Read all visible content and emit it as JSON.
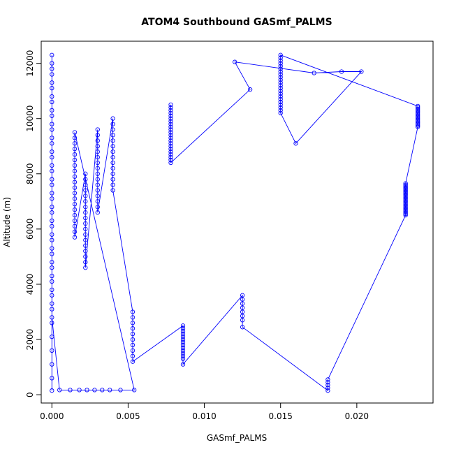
{
  "chart_data": {
    "type": "scatter",
    "title": "ATOM4 Southbound GASmf_PALMS",
    "xlabel": "GASmf_PALMS",
    "ylabel": "Altitude (m)",
    "xlim": [
      -0.0007,
      0.025
    ],
    "ylim": [
      -300,
      12800
    ],
    "x_ticks": [
      0.0,
      0.005,
      0.01,
      0.015,
      0.02
    ],
    "x_tick_labels": [
      "0.000",
      "0.005",
      "0.010",
      "0.015",
      "0.020"
    ],
    "y_ticks": [
      0,
      2000,
      4000,
      6000,
      8000,
      10000,
      12000
    ],
    "y_tick_labels": [
      "0",
      "2000",
      "4000",
      "6000",
      "8000",
      "10000",
      "12000"
    ],
    "grid": false,
    "legend": "none",
    "series_color": "#0000ff",
    "marker": "open-circle",
    "connected": true,
    "series": [
      {
        "x": [
          0.0,
          0.0,
          0.0,
          0.0,
          0.0,
          0.0,
          0.0,
          0.0,
          0.0,
          0.0,
          0.0,
          0.0,
          0.0,
          0.0,
          0.0,
          0.0,
          0.0,
          0.0,
          0.0,
          0.0,
          0.0,
          0.0,
          0.0,
          0.0,
          0.0,
          0.0,
          0.0,
          0.0,
          0.0,
          0.0,
          0.0,
          0.0,
          0.0,
          0.0,
          0.0,
          0.0,
          0.0,
          0.0,
          0.0,
          0.0,
          0.0,
          0.0,
          0.0,
          0.0,
          0.0,
          0.0005,
          0.0012,
          0.0018,
          0.0023,
          0.0028,
          0.0033,
          0.0038,
          0.0045,
          0.0054,
          0.0015,
          0.0015,
          0.0015,
          0.0015,
          0.0015,
          0.0015,
          0.0015,
          0.0015,
          0.0015,
          0.0015,
          0.0015,
          0.0015,
          0.0015,
          0.0015,
          0.0015,
          0.0015,
          0.0015,
          0.0015,
          0.0015,
          0.0015,
          0.0022,
          0.0022,
          0.0022,
          0.0022,
          0.0022,
          0.0022,
          0.0022,
          0.0022,
          0.0022,
          0.0022,
          0.0022,
          0.0022,
          0.0022,
          0.0022,
          0.0022,
          0.0022,
          0.0022,
          0.0022,
          0.003,
          0.003,
          0.003,
          0.003,
          0.003,
          0.003,
          0.003,
          0.003,
          0.003,
          0.003,
          0.003,
          0.003,
          0.003,
          0.003,
          0.003,
          0.003,
          0.004,
          0.004,
          0.004,
          0.004,
          0.004,
          0.004,
          0.004,
          0.004,
          0.004,
          0.004,
          0.004,
          0.004,
          0.004,
          0.004,
          0.0053,
          0.0053,
          0.0053,
          0.0053,
          0.0053,
          0.0053,
          0.0053,
          0.0053,
          0.0053,
          0.0053,
          0.0086,
          0.0086,
          0.0086,
          0.0086,
          0.0086,
          0.0086,
          0.0086,
          0.0086,
          0.0086,
          0.0086,
          0.0086,
          0.0086,
          0.0086,
          0.0086,
          0.0125,
          0.0125,
          0.0125,
          0.0125,
          0.0125,
          0.0125,
          0.0125,
          0.0125,
          0.0181,
          0.0181,
          0.0181,
          0.0181,
          0.0181,
          0.0232,
          0.0232,
          0.0232,
          0.0232,
          0.0232,
          0.0232,
          0.0232,
          0.0232,
          0.0232,
          0.0232,
          0.0232,
          0.0232,
          0.0232,
          0.0232,
          0.0232,
          0.0232,
          0.0232,
          0.0232,
          0.0232,
          0.0232,
          0.0232,
          0.0232,
          0.0232,
          0.0232,
          0.024,
          0.024,
          0.024,
          0.024,
          0.024,
          0.024,
          0.024,
          0.024,
          0.024,
          0.024,
          0.024,
          0.024,
          0.024,
          0.024,
          0.024,
          0.024,
          0.015,
          0.015,
          0.015,
          0.015,
          0.015,
          0.015,
          0.015,
          0.015,
          0.015,
          0.015,
          0.015,
          0.015,
          0.015,
          0.015,
          0.015,
          0.015,
          0.015,
          0.015,
          0.015,
          0.015,
          0.015,
          0.015,
          0.016,
          0.0203,
          0.019,
          0.0172,
          0.012,
          0.013,
          0.0078,
          0.0078,
          0.0078,
          0.0078,
          0.0078,
          0.0078,
          0.0078,
          0.0078,
          0.0078,
          0.0078,
          0.0078,
          0.0078,
          0.0078,
          0.0078,
          0.0078,
          0.0078,
          0.0078,
          0.0078,
          0.0078,
          0.0078,
          0.0078,
          0.0078
        ],
        "y": [
          150,
          600,
          1100,
          1600,
          2100,
          2600,
          3100,
          3600,
          4100,
          4600,
          5100,
          5600,
          6100,
          6600,
          7100,
          7600,
          8100,
          8600,
          9100,
          9600,
          10100,
          10600,
          11100,
          11600,
          12000,
          12300,
          11800,
          11300,
          10800,
          10300,
          9800,
          9300,
          8800,
          8300,
          7800,
          7300,
          6800,
          6300,
          5800,
          5300,
          4800,
          4300,
          3800,
          3300,
          2800,
          170,
          170,
          170,
          170,
          170,
          170,
          170,
          170,
          170,
          9500,
          9300,
          9100,
          8900,
          8700,
          8500,
          8300,
          8100,
          7900,
          7700,
          7500,
          7300,
          7100,
          6900,
          6700,
          6500,
          6300,
          6100,
          5900,
          5700,
          8000,
          7800,
          7600,
          7400,
          7200,
          7000,
          6800,
          6600,
          6400,
          6200,
          6000,
          5800,
          5600,
          5400,
          5200,
          5000,
          4800,
          4600,
          9600,
          9400,
          9200,
          9000,
          8800,
          8600,
          8400,
          8200,
          8000,
          7800,
          7600,
          7400,
          7200,
          7000,
          6800,
          6600,
          10000,
          9800,
          9600,
          9400,
          9200,
          9000,
          8800,
          8600,
          8400,
          8200,
          8000,
          7800,
          7600,
          7400,
          3000,
          2800,
          2600,
          2400,
          2200,
          2000,
          1800,
          1600,
          1400,
          1200,
          2500,
          2400,
          2300,
          2200,
          2100,
          2000,
          1900,
          1800,
          1700,
          1600,
          1500,
          1400,
          1300,
          1100,
          3600,
          3450,
          3300,
          3150,
          3000,
          2850,
          2700,
          2450,
          150,
          250,
          350,
          450,
          550,
          6500,
          6550,
          6600,
          6650,
          6700,
          6750,
          6800,
          6850,
          6900,
          6950,
          7000,
          7050,
          7100,
          7150,
          7200,
          7250,
          7300,
          7350,
          7400,
          7450,
          7500,
          7550,
          7600,
          7650,
          9700,
          9750,
          9800,
          9850,
          9900,
          9950,
          10000,
          10050,
          10100,
          10150,
          10200,
          10250,
          10300,
          10350,
          10400,
          10450,
          12300,
          12200,
          12100,
          12000,
          11900,
          11800,
          11700,
          11600,
          11500,
          11400,
          11300,
          11200,
          11100,
          11000,
          10900,
          10800,
          10700,
          10600,
          10500,
          10400,
          10300,
          10200,
          9100,
          11700,
          11700,
          11650,
          12050,
          11050,
          8400,
          8500,
          8600,
          8700,
          8800,
          8900,
          9000,
          9100,
          9200,
          9300,
          9400,
          9500,
          9600,
          9700,
          9800,
          9900,
          10000,
          10100,
          10200,
          10300,
          10400,
          10500
        ]
      }
    ]
  }
}
